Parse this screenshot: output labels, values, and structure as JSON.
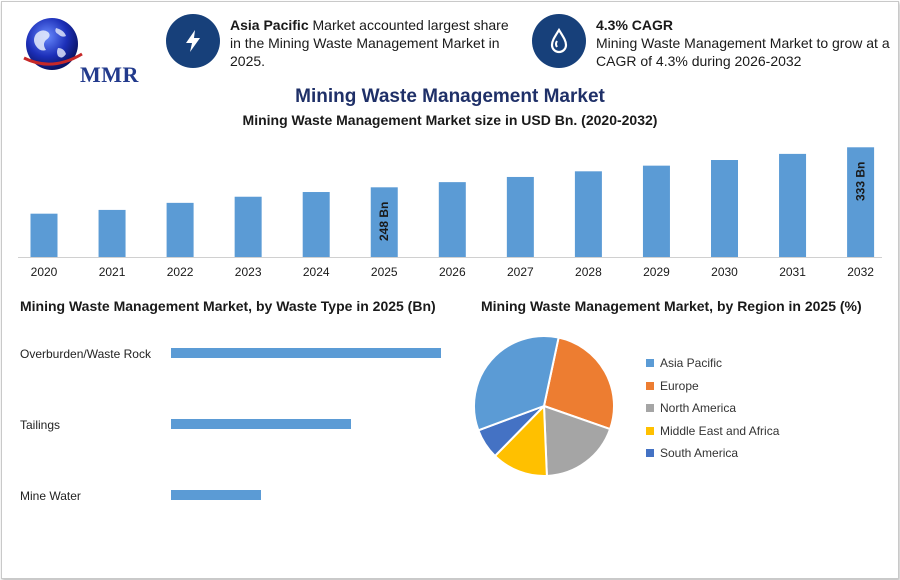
{
  "logo": {
    "text": "MMR"
  },
  "info_left": {
    "icon": "lightning-icon",
    "bold": "Asia Pacific",
    "text": " Market accounted largest share in the Mining Waste Management Market in 2025."
  },
  "info_right": {
    "icon": "drop-icon",
    "bold": "4.3% CAGR",
    "text": "Mining Waste Management Market to grow at a CAGR of 4.3% during 2026-2032"
  },
  "header": {
    "title": "Mining Waste Management Market",
    "subtitle": "Mining Waste Management Market size in USD Bn. (2020-2032)"
  },
  "colors": {
    "bar": "#5b9bd5",
    "accent": "#17407a",
    "title": "#1f3068"
  },
  "chart_data": [
    {
      "type": "bar",
      "title": "Mining Waste Management Market size in USD Bn. (2020-2032)",
      "categories": [
        "2020",
        "2021",
        "2022",
        "2023",
        "2024",
        "2025",
        "2026",
        "2027",
        "2028",
        "2029",
        "2030",
        "2031",
        "2032"
      ],
      "values": [
        192,
        200,
        215,
        228,
        238,
        248,
        259,
        270,
        282,
        294,
        306,
        319,
        333
      ],
      "ylim": [
        100,
        340
      ],
      "data_labels": {
        "2025": "248 Bn",
        "2032": "333 Bn"
      },
      "grid": false
    },
    {
      "type": "bar",
      "orientation": "horizontal",
      "title": "Mining Waste Management Market, by Waste Type in 2025 (Bn)",
      "categories": [
        "Overburden/Waste Rock",
        "Tailings",
        "Mine Water"
      ],
      "values": [
        150,
        100,
        50
      ],
      "xlim": [
        0,
        150
      ]
    },
    {
      "type": "pie",
      "title": "Mining Waste Management Market, by Region in 2025 (%)",
      "categories": [
        "Asia Pacific",
        "Europe",
        "North America",
        "Middle East and Africa",
        "South America"
      ],
      "values": [
        34,
        27,
        19,
        13,
        7
      ],
      "colors": [
        "#5b9bd5",
        "#ed7d31",
        "#a5a5a5",
        "#ffc000",
        "#4472c4"
      ],
      "legend": "right"
    }
  ]
}
